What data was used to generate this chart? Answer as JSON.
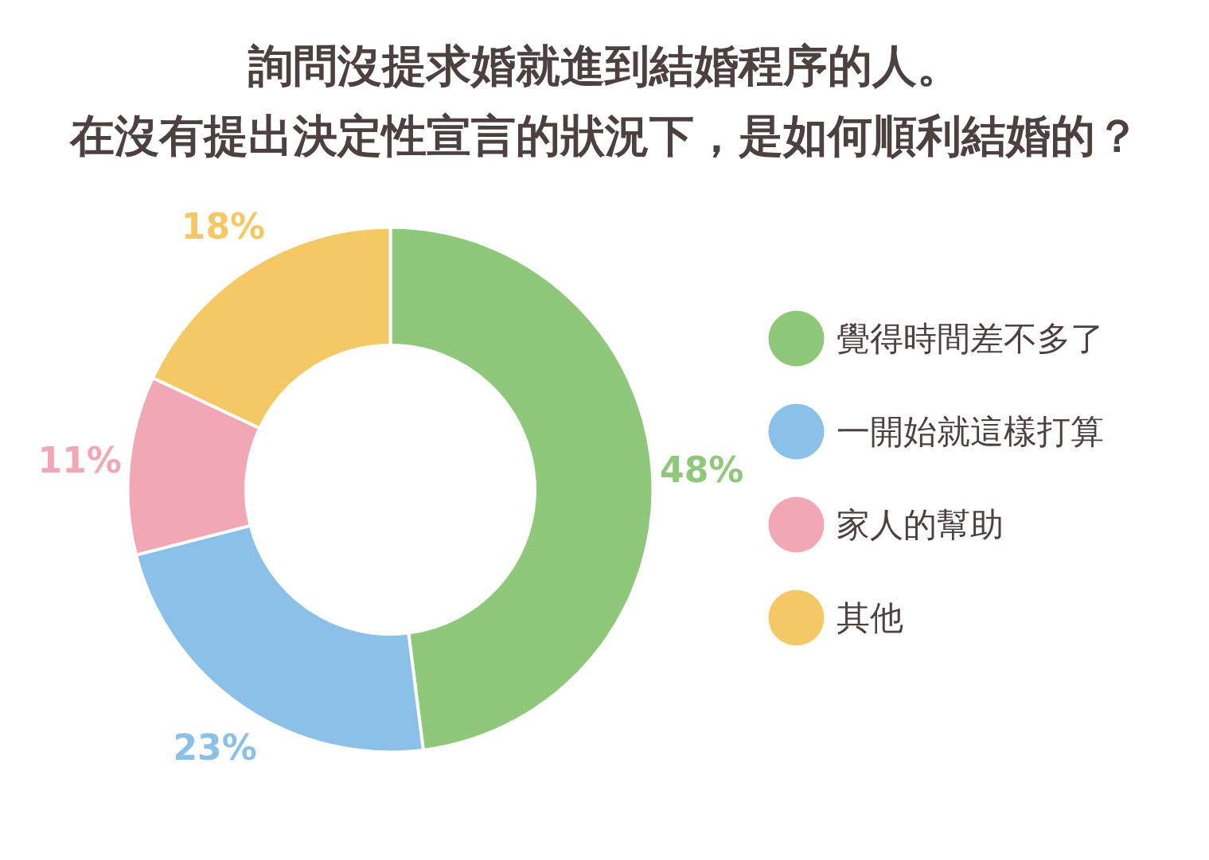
{
  "chart_data": {
    "type": "donut",
    "title": "詢問沒提求婚就進到結婚程序的人。",
    "subtitle": "在沒有提出決定性宣言的狀況下，是如何順利結婚的？",
    "categories": [
      "覺得時間差不多了",
      "一開始就這樣打算",
      "家人的幫助",
      "其他"
    ],
    "values": [
      48,
      23,
      11,
      18
    ],
    "colors": [
      "#8fc87a",
      "#8bc1e9",
      "#f2a7b4",
      "#f5c866"
    ],
    "value_labels": [
      "48%",
      "23%",
      "11%",
      "18%"
    ],
    "legend": "right"
  }
}
